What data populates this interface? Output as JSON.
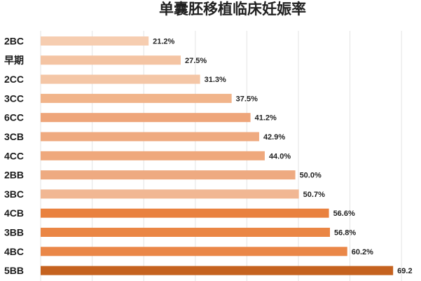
{
  "chart_data": {
    "type": "bar",
    "orientation": "horizontal",
    "title": "单囊胚移植临床妊娠率",
    "xlabel": "",
    "ylabel": "",
    "xlim": [
      0,
      70
    ],
    "grid": true,
    "legend": "none",
    "categories": [
      "2BC",
      "早期",
      "2CC",
      "3CC",
      "6CC",
      "3CB",
      "4CC",
      "2BB",
      "3BC",
      "4CB",
      "3BB",
      "4BC",
      "5BB"
    ],
    "values": [
      21.2,
      27.5,
      31.3,
      37.5,
      41.2,
      42.9,
      44.0,
      50.0,
      50.7,
      56.6,
      56.8,
      60.2,
      69.2
    ],
    "value_labels": [
      "21.2%",
      "27.5%",
      "31.3%",
      "37.5%",
      "41.2%",
      "42.9%",
      "44.0%",
      "50.0%",
      "50.7%",
      "56.6%",
      "56.8%",
      "60.2%",
      "69.2"
    ],
    "colors": [
      "#f6cdb0",
      "#f4c4a3",
      "#f4c6a6",
      "#f1b48a",
      "#eea57a",
      "#efaa80",
      "#efa87c",
      "#eeaa81",
      "#f1b793",
      "#e9813f",
      "#ea8645",
      "#ea8748",
      "#c5621f"
    ],
    "gridline_color": "#e3e3e3"
  }
}
